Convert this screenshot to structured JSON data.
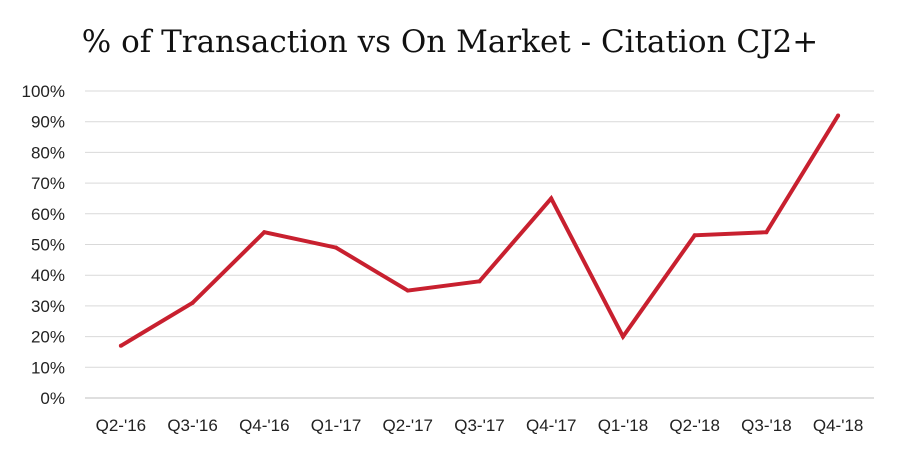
{
  "chart_data": {
    "type": "line",
    "title": "% of Transaction vs On Market - Citation CJ2+",
    "categories": [
      "Q2-'16",
      "Q3-'16",
      "Q4-'16",
      "Q1-'17",
      "Q2-'17",
      "Q3-'17",
      "Q4-'17",
      "Q1-'18",
      "Q2-'18",
      "Q3-'18",
      "Q4-'18"
    ],
    "series": [
      {
        "values": [
          17,
          31,
          54,
          49,
          35,
          38,
          65,
          20,
          53,
          54,
          92
        ],
        "color": "#c8202f"
      }
    ],
    "ylim": [
      0,
      100
    ],
    "yticks": [
      "0%",
      "10%",
      "20%",
      "30%",
      "40%",
      "50%",
      "60%",
      "70%",
      "80%",
      "90%",
      "100%"
    ],
    "grid": true,
    "legend": "none"
  }
}
